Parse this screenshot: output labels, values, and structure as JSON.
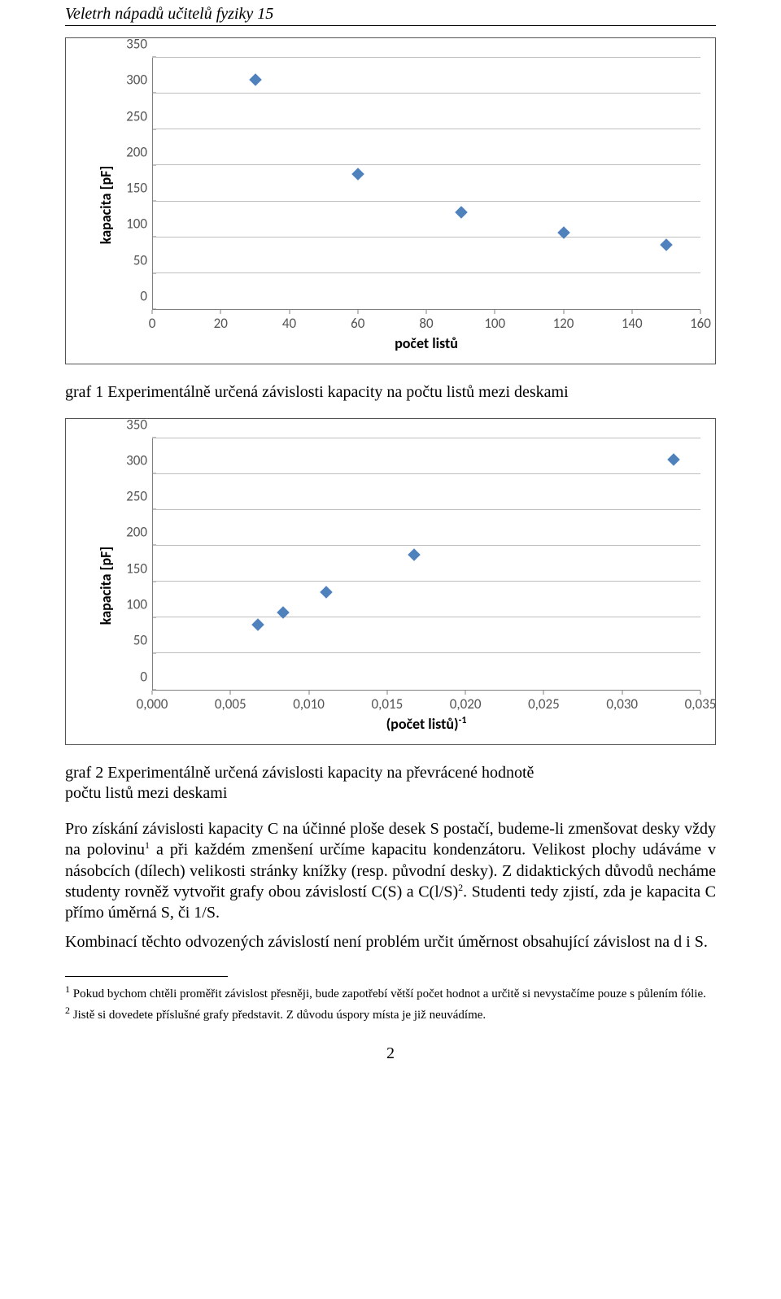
{
  "running_header": "Veletrh nápadů učitelů fyziky 15",
  "chart1": {
    "type": "scatter",
    "ylabel": "kapacita [pF]",
    "xlabel": "počet listů",
    "ylim": [
      0,
      350
    ],
    "ytick_step": 50,
    "yticks": [
      0,
      50,
      100,
      150,
      200,
      250,
      300,
      350
    ],
    "xlim": [
      0,
      160
    ],
    "xtick_step": 20,
    "xticks": [
      0,
      20,
      40,
      60,
      80,
      100,
      120,
      140,
      160
    ],
    "marker_style": "diamond",
    "marker_color": "#4f81bd",
    "grid_color": "#bfbfbf",
    "axis_color": "#7f7f7f",
    "tick_font_color": "#595959",
    "tick_fontsize": 17,
    "label_fontsize": 18,
    "background_color": "#ffffff",
    "points": [
      {
        "x": 30,
        "y": 320
      },
      {
        "x": 60,
        "y": 188
      },
      {
        "x": 90,
        "y": 135
      },
      {
        "x": 120,
        "y": 107
      },
      {
        "x": 150,
        "y": 90
      }
    ]
  },
  "caption1": "graf 1 Experimentálně určená závislosti kapacity na počtu listů mezi deskami",
  "chart2": {
    "type": "scatter",
    "ylabel": "kapacita [pF]",
    "xlabel_html": "(počet listů)<sup>-1</sup>",
    "xlabel_plain": "(počet listů)-1",
    "ylim": [
      0,
      350
    ],
    "ytick_step": 50,
    "yticks": [
      0,
      50,
      100,
      150,
      200,
      250,
      300,
      350
    ],
    "xlim": [
      0.0,
      0.035
    ],
    "xtick_step": 0.005,
    "xticks_labels": [
      "0,000",
      "0,005",
      "0,010",
      "0,015",
      "0,020",
      "0,025",
      "0,030",
      "0,035"
    ],
    "xticks_values": [
      0.0,
      0.005,
      0.01,
      0.015,
      0.02,
      0.025,
      0.03,
      0.035
    ],
    "marker_style": "diamond",
    "marker_color": "#4f81bd",
    "grid_color": "#bfbfbf",
    "axis_color": "#7f7f7f",
    "tick_font_color": "#595959",
    "tick_fontsize": 17,
    "label_fontsize": 18,
    "background_color": "#ffffff",
    "points": [
      {
        "x": 0.0067,
        "y": 90
      },
      {
        "x": 0.0083,
        "y": 107
      },
      {
        "x": 0.0111,
        "y": 135
      },
      {
        "x": 0.0167,
        "y": 188
      },
      {
        "x": 0.0333,
        "y": 320
      }
    ]
  },
  "caption2_line1": "graf 2 Experimentálně určená závislosti kapacity na převrácené hodnotě",
  "caption2_line2": "počtu listů mezi deskami",
  "para1_html": "Pro získání závislosti kapacity C na účinné ploše desek S postačí, budeme-li zmenšovat desky vždy na polovinu<sup>1</sup> a při každém zmenšení určíme kapacitu kondenzátoru. Velikost plochy udáváme v násobcích (dílech) velikosti stránky knížky (resp. původní desky). Z&nbsp;didaktických důvodů necháme studenty rovněž vytvořit grafy obou závislostí C(S) a C(l/S)<sup>2</sup>. Studenti tedy zjistí, zda je kapacita C přímo úměrná S, či 1/S.",
  "para2": "Kombinací těchto odvozených závislostí není problém určit úměrnost obsahující závislost na d i S.",
  "footnote1_html": "<sup>1</sup> Pokud bychom chtěli proměřit závislost přesněji, bude zapotřebí větší počet hodnot a určitě si nevystačíme pouze s půlením fólie.",
  "footnote2_html": "<sup>2</sup> Jistě si dovedete příslušné grafy představit. Z důvodu úspory místa je již neuvádíme.",
  "page_number": "2"
}
